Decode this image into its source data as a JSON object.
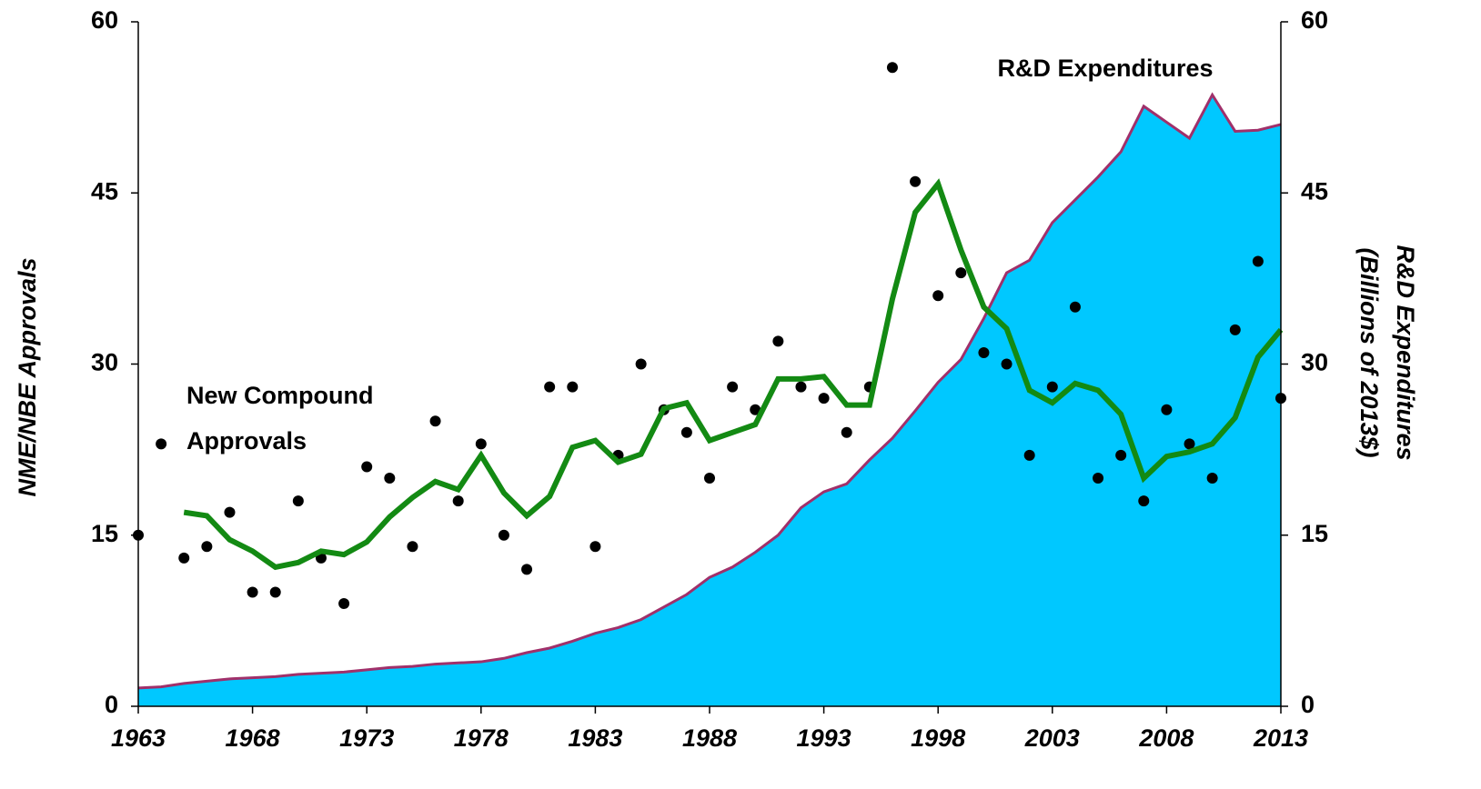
{
  "chart_data": {
    "type": "combo",
    "ylabel": "NME/NBE Approvals",
    "y2label": [
      "R&D Expenditures",
      "(Billions of 2013$)"
    ],
    "annotations": [
      "R&D Expenditures",
      "New Compound",
      "Approvals"
    ],
    "annotation_color": "#9b0d0d",
    "x": [
      1963,
      1964,
      1965,
      1966,
      1967,
      1968,
      1969,
      1970,
      1971,
      1972,
      1973,
      1974,
      1975,
      1976,
      1977,
      1978,
      1979,
      1980,
      1981,
      1982,
      1983,
      1984,
      1985,
      1986,
      1987,
      1988,
      1989,
      1990,
      1991,
      1992,
      1993,
      1994,
      1995,
      1996,
      1997,
      1998,
      1999,
      2000,
      2001,
      2002,
      2003,
      2004,
      2005,
      2006,
      2007,
      2008,
      2009,
      2010,
      2011,
      2012,
      2013
    ],
    "xlim": [
      1963,
      2013
    ],
    "xticks": [
      1963,
      1968,
      1973,
      1978,
      1983,
      1988,
      1993,
      1998,
      2003,
      2008,
      2013
    ],
    "ylim": [
      0,
      60
    ],
    "yticks": [
      0,
      15,
      30,
      45,
      60
    ],
    "y2lim": [
      0,
      60
    ],
    "y2ticks": [
      0,
      15,
      30,
      45,
      60
    ],
    "series": [
      {
        "type": "area",
        "axis": "y2",
        "color": "#00c8ff",
        "line_color": "#a0306a",
        "values": [
          1.6,
          1.7,
          2.0,
          2.2,
          2.4,
          2.5,
          2.6,
          2.8,
          2.9,
          3.0,
          3.2,
          3.4,
          3.5,
          3.7,
          3.8,
          3.9,
          4.2,
          4.7,
          5.1,
          5.7,
          6.4,
          6.9,
          7.6,
          8.7,
          9.8,
          11.3,
          12.2,
          13.5,
          15.0,
          17.4,
          18.8,
          19.5,
          21.6,
          23.5,
          25.9,
          28.4,
          30.4,
          34.0,
          38.0,
          39.1,
          42.4,
          44.4,
          46.4,
          48.6,
          52.6,
          51.2,
          49.8,
          53.6,
          50.4,
          50.5,
          51.0
        ]
      },
      {
        "type": "scatter",
        "color": "#000000",
        "values": [
          15,
          23,
          13,
          14,
          17,
          10,
          10,
          18,
          13,
          9,
          21,
          20,
          14,
          25,
          18,
          23,
          15,
          12,
          28,
          28,
          14,
          22,
          30,
          26,
          24,
          20,
          28,
          26,
          32,
          28,
          27,
          24,
          28,
          56,
          46,
          36,
          38,
          31,
          30,
          22,
          28,
          35,
          20,
          22,
          18,
          26,
          23,
          20,
          33,
          39,
          27
        ]
      },
      {
        "type": "line",
        "color": "#138a13",
        "values": [
          null,
          null,
          17,
          16.7,
          14.6,
          13.6,
          12.2,
          12.6,
          13.6,
          13.3,
          14.4,
          16.6,
          18.3,
          19.7,
          19.0,
          22.0,
          18.7,
          16.7,
          18.4,
          22.7,
          23.3,
          21.4,
          22.1,
          26.1,
          26.6,
          23.3,
          24.0,
          24.7,
          28.7,
          28.7,
          28.9,
          26.4,
          26.4,
          35.7,
          43.3,
          45.8,
          40.0,
          35.0,
          33.1,
          27.7,
          26.6,
          28.3,
          27.7,
          25.6,
          20.0,
          21.9,
          22.3,
          23.0,
          25.3,
          30.6,
          33.0
        ]
      }
    ]
  }
}
